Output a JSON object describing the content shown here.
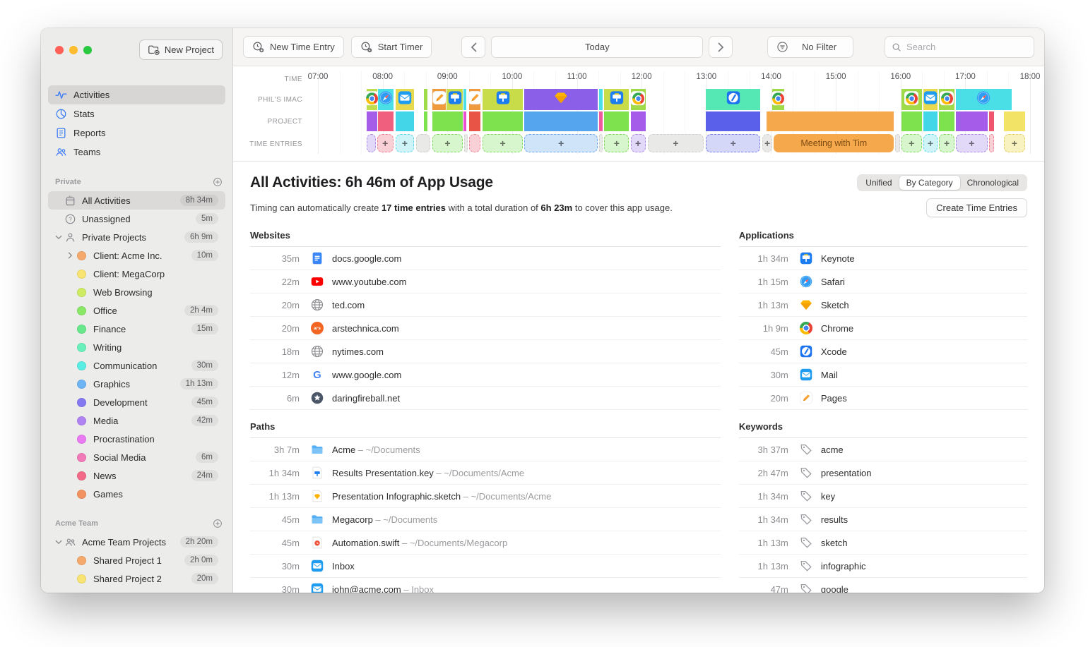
{
  "sidebar": {
    "new_project_label": "New Project",
    "nav": [
      {
        "label": "Activities",
        "icon": "activities",
        "selected": true
      },
      {
        "label": "Stats",
        "icon": "stats",
        "selected": false
      },
      {
        "label": "Reports",
        "icon": "reports",
        "selected": false
      },
      {
        "label": "Teams",
        "icon": "teams",
        "selected": false
      }
    ],
    "sections": [
      {
        "title": "Private",
        "items": [
          {
            "label": "All Activities",
            "icon": "tray",
            "time": "8h 34m",
            "selected": true,
            "indent": 0
          },
          {
            "label": "Unassigned",
            "icon": "question",
            "time": "5m",
            "indent": 0
          },
          {
            "label": "Private Projects",
            "icon": "person",
            "time": "6h 9m",
            "indent": 0,
            "chevron": "down"
          },
          {
            "label": "Client: Acme Inc.",
            "dot": "#f6a96c",
            "time": "10m",
            "indent": 1,
            "chevron": "right"
          },
          {
            "label": "Client: MegaCorp",
            "dot": "#f8e473",
            "time": "",
            "indent": 1
          },
          {
            "label": "Web Browsing",
            "dot": "#cdec62",
            "time": "",
            "indent": 1
          },
          {
            "label": "Office",
            "dot": "#8ae867",
            "time": "2h 4m",
            "indent": 1
          },
          {
            "label": "Finance",
            "dot": "#67e88a",
            "time": "15m",
            "indent": 1
          },
          {
            "label": "Writing",
            "dot": "#69f0bb",
            "time": "",
            "indent": 1
          },
          {
            "label": "Communication",
            "dot": "#58eee4",
            "time": "30m",
            "indent": 1
          },
          {
            "label": "Graphics",
            "dot": "#6db4f5",
            "time": "1h 13m",
            "indent": 1
          },
          {
            "label": "Development",
            "dot": "#8579f2",
            "time": "45m",
            "indent": 1
          },
          {
            "label": "Media",
            "dot": "#b083f2",
            "time": "42m",
            "indent": 1
          },
          {
            "label": "Procrastination",
            "dot": "#e97af2",
            "time": "",
            "indent": 1
          },
          {
            "label": "Social Media",
            "dot": "#f27ab8",
            "time": "6m",
            "indent": 1
          },
          {
            "label": "News",
            "dot": "#f26a88",
            "time": "24m",
            "indent": 1
          },
          {
            "label": "Games",
            "dot": "#f2925f",
            "time": "",
            "indent": 1
          }
        ]
      },
      {
        "title": "Acme Team",
        "items": [
          {
            "label": "Acme Team Projects",
            "icon": "people",
            "time": "2h 20m",
            "indent": 0,
            "chevron": "down"
          },
          {
            "label": "Shared Project 1",
            "dot": "#f6a96c",
            "time": "2h 0m",
            "indent": 1
          },
          {
            "label": "Shared Project 2",
            "dot": "#f8e473",
            "time": "20m",
            "indent": 1
          }
        ]
      }
    ]
  },
  "toolbar": {
    "new_time_entry": "New Time Entry",
    "start_timer": "Start Timer",
    "date_label": "Today",
    "filter_label": "No Filter",
    "search_placeholder": "Search"
  },
  "timeline": {
    "row_labels": [
      "TIME",
      "PHIL'S IMAC",
      "PROJECT",
      "TIME ENTRIES"
    ],
    "hours": [
      "07:00",
      "08:00",
      "09:00",
      "10:00",
      "11:00",
      "12:00",
      "13:00",
      "14:00",
      "15:00",
      "16:00",
      "17:00",
      "18:00"
    ],
    "meeting_label": "Meeting with Tim",
    "device_segments": [
      {
        "s": 6.8,
        "w": 1.5,
        "c": "#bede4d",
        "icon": "chrome"
      },
      {
        "s": 8.4,
        "w": 2.2,
        "c": "#4adee6",
        "icon": "safari"
      },
      {
        "s": 10.9,
        "w": 2.6,
        "c": "#e8d94f",
        "icon": "mail"
      },
      {
        "s": 14.9,
        "w": 0.5,
        "c": "#a0dc4a"
      },
      {
        "s": 16.1,
        "w": 1.9,
        "c": "#f09a3e",
        "icon": "pages"
      },
      {
        "s": 18.1,
        "w": 2.2,
        "c": "#c8dc4a",
        "icon": "keynote"
      },
      {
        "s": 20.4,
        "w": 0.4,
        "c": "#4adee6"
      },
      {
        "s": 21.2,
        "w": 1.6,
        "c": "#f09a3e",
        "icon": "pages"
      },
      {
        "s": 23.1,
        "w": 5.7,
        "c": "#c8dc4a",
        "icon": "keynote"
      },
      {
        "s": 29.0,
        "w": 10.3,
        "c": "#8b5fe8",
        "icon": "sketch"
      },
      {
        "s": 39.5,
        "w": 0.5,
        "c": "#4adee6"
      },
      {
        "s": 40.2,
        "w": 3.5,
        "c": "#c8dc4a",
        "icon": "keynote"
      },
      {
        "s": 43.9,
        "w": 2.1,
        "c": "#a0dc4a",
        "icon": "chrome"
      },
      {
        "s": 54.5,
        "w": 7.6,
        "c": "#55e8b5",
        "icon": "xcode"
      },
      {
        "s": 63.8,
        "w": 1.7,
        "c": "#a0dc4a",
        "icon": "chrome"
      },
      {
        "s": 81.9,
        "w": 2.9,
        "c": "#a0dc4a",
        "icon": "chrome"
      },
      {
        "s": 85.0,
        "w": 2.0,
        "c": "#e8d94f",
        "icon": "mail"
      },
      {
        "s": 87.2,
        "w": 2.2,
        "c": "#a0dc4a",
        "icon": "chrome"
      },
      {
        "s": 89.6,
        "w": 7.8,
        "c": "#4adee6",
        "icon": "safari"
      }
    ],
    "project_segments": [
      {
        "s": 6.8,
        "w": 1.5,
        "c": "#a55ce8"
      },
      {
        "s": 8.4,
        "w": 2.2,
        "c": "#f05f7d"
      },
      {
        "s": 10.9,
        "w": 2.6,
        "c": "#43d6e8"
      },
      {
        "s": 14.9,
        "w": 0.5,
        "c": "#7de24e"
      },
      {
        "s": 16.1,
        "w": 4.2,
        "c": "#7de24e"
      },
      {
        "s": 20.4,
        "w": 0.4,
        "c": "#e84fd0"
      },
      {
        "s": 21.2,
        "w": 1.6,
        "c": "#e85546"
      },
      {
        "s": 23.1,
        "w": 5.7,
        "c": "#7de24e"
      },
      {
        "s": 29.0,
        "w": 10.3,
        "c": "#55a4ee"
      },
      {
        "s": 39.5,
        "w": 0.5,
        "c": "#f05a9e"
      },
      {
        "s": 40.2,
        "w": 3.5,
        "c": "#7de24e"
      },
      {
        "s": 43.9,
        "w": 2.1,
        "c": "#a55ce8"
      },
      {
        "s": 54.5,
        "w": 7.6,
        "c": "#5a60ea"
      },
      {
        "s": 63.0,
        "w": 17.9,
        "c": "#f5a94c"
      },
      {
        "s": 81.9,
        "w": 2.9,
        "c": "#7de24e"
      },
      {
        "s": 85.0,
        "w": 2.0,
        "c": "#43d6e8"
      },
      {
        "s": 87.2,
        "w": 2.2,
        "c": "#7de24e"
      },
      {
        "s": 89.6,
        "w": 4.4,
        "c": "#a55ce8"
      },
      {
        "s": 94.2,
        "w": 0.7,
        "c": "#f0566e"
      },
      {
        "s": 96.3,
        "w": 3.0,
        "c": "#f2e266"
      }
    ],
    "entry_segments": [
      {
        "s": 6.8,
        "w": 1.3,
        "k": "purple",
        "plus": false
      },
      {
        "s": 8.3,
        "w": 2.3,
        "k": "red",
        "plus": true
      },
      {
        "s": 10.9,
        "w": 2.6,
        "k": "cyan",
        "plus": true
      },
      {
        "s": 13.8,
        "w": 2.0,
        "k": "gray",
        "plus": false
      },
      {
        "s": 16.1,
        "w": 4.2,
        "k": "green",
        "plus": true
      },
      {
        "s": 20.5,
        "w": 0.5,
        "k": "gray",
        "plus": false
      },
      {
        "s": 21.2,
        "w": 1.6,
        "k": "red",
        "plus": false
      },
      {
        "s": 23.1,
        "w": 5.7,
        "k": "green",
        "plus": true
      },
      {
        "s": 29.0,
        "w": 10.3,
        "k": "blue",
        "plus": true
      },
      {
        "s": 39.5,
        "w": 0.5,
        "k": "gray",
        "plus": false
      },
      {
        "s": 40.2,
        "w": 3.5,
        "k": "green",
        "plus": true
      },
      {
        "s": 43.9,
        "w": 2.1,
        "k": "purple",
        "plus": true
      },
      {
        "s": 46.3,
        "w": 7.9,
        "k": "gray",
        "plus": true
      },
      {
        "s": 54.5,
        "w": 7.6,
        "k": "indigo",
        "plus": true
      },
      {
        "s": 62.4,
        "w": 1.4,
        "k": "gray",
        "plus": true
      },
      {
        "s": 64.0,
        "w": 16.9,
        "k": "orange",
        "plus": false,
        "label": true
      },
      {
        "s": 81.1,
        "w": 0.6,
        "k": "gray",
        "plus": false
      },
      {
        "s": 81.9,
        "w": 2.9,
        "k": "green",
        "plus": true
      },
      {
        "s": 85.0,
        "w": 2.0,
        "k": "cyan",
        "plus": true
      },
      {
        "s": 87.2,
        "w": 2.2,
        "k": "green",
        "plus": true
      },
      {
        "s": 89.6,
        "w": 4.4,
        "k": "purple",
        "plus": true
      },
      {
        "s": 94.2,
        "w": 0.7,
        "k": "red",
        "plus": false
      },
      {
        "s": 96.3,
        "w": 3.0,
        "k": "yellow",
        "plus": true
      }
    ]
  },
  "content": {
    "title": "All Activities: 6h 46m of App Usage",
    "view_modes": [
      "Unified",
      "By Category",
      "Chronological"
    ],
    "view_selected": "By Category",
    "subtitle_parts": [
      "Timing can automatically create ",
      "17 time entries",
      " with a total duration of ",
      "6h 23m",
      " to cover this app usage."
    ],
    "create_button": "Create Time Entries",
    "websites": {
      "title": "Websites",
      "rows": [
        {
          "dur": "35m",
          "icon": "gdocs",
          "name": "docs.google.com"
        },
        {
          "dur": "22m",
          "icon": "youtube",
          "name": "www.youtube.com"
        },
        {
          "dur": "20m",
          "icon": "globe",
          "name": "ted.com"
        },
        {
          "dur": "20m",
          "icon": "ars",
          "name": "arstechnica.com"
        },
        {
          "dur": "18m",
          "icon": "globe",
          "name": "nytimes.com"
        },
        {
          "dur": "12m",
          "icon": "google",
          "name": "www.google.com"
        },
        {
          "dur": "6m",
          "icon": "df",
          "name": "daringfireball.net"
        }
      ]
    },
    "applications": {
      "title": "Applications",
      "rows": [
        {
          "dur": "1h 34m",
          "icon": "keynote",
          "name": "Keynote"
        },
        {
          "dur": "1h 15m",
          "icon": "safari",
          "name": "Safari"
        },
        {
          "dur": "1h 13m",
          "icon": "sketch",
          "name": "Sketch"
        },
        {
          "dur": "1h 9m",
          "icon": "chrome",
          "name": "Chrome"
        },
        {
          "dur": "45m",
          "icon": "xcode",
          "name": "Xcode"
        },
        {
          "dur": "30m",
          "icon": "mail",
          "name": "Mail"
        },
        {
          "dur": "20m",
          "icon": "pages",
          "name": "Pages"
        }
      ]
    },
    "paths": {
      "title": "Paths",
      "rows": [
        {
          "dur": "3h 7m",
          "icon": "folder",
          "name": "Acme",
          "path": "~/Documents"
        },
        {
          "dur": "1h 34m",
          "icon": "keynotefile",
          "name": "Results Presentation.key",
          "path": "~/Documents/Acme"
        },
        {
          "dur": "1h 13m",
          "icon": "sketchfile",
          "name": "Presentation Infographic.sketch",
          "path": "~/Documents/Acme"
        },
        {
          "dur": "45m",
          "icon": "folder",
          "name": "Megacorp",
          "path": "~/Documents"
        },
        {
          "dur": "45m",
          "icon": "swiftfile",
          "name": "Automation.swift",
          "path": "~/Documents/Megacorp"
        },
        {
          "dur": "30m",
          "icon": "mail",
          "name": "Inbox",
          "path": ""
        },
        {
          "dur": "30m",
          "icon": "mail",
          "name": "john@acme.com",
          "path": "Inbox"
        }
      ]
    },
    "keywords": {
      "title": "Keywords",
      "rows": [
        {
          "dur": "3h 37m",
          "icon": "tag",
          "name": "acme"
        },
        {
          "dur": "2h 47m",
          "icon": "tag",
          "name": "presentation"
        },
        {
          "dur": "1h 34m",
          "icon": "tag",
          "name": "key"
        },
        {
          "dur": "1h 34m",
          "icon": "tag",
          "name": "results"
        },
        {
          "dur": "1h 13m",
          "icon": "tag",
          "name": "sketch"
        },
        {
          "dur": "1h 13m",
          "icon": "tag",
          "name": "infographic"
        },
        {
          "dur": "47m",
          "icon": "tag",
          "name": "google"
        }
      ]
    }
  },
  "colors": {
    "accent_blue": "#3b7cf6",
    "meeting_orange": "#f5a94c",
    "traffic_red": "#ff5f57",
    "traffic_yellow": "#febc2e",
    "traffic_green": "#28c840"
  }
}
